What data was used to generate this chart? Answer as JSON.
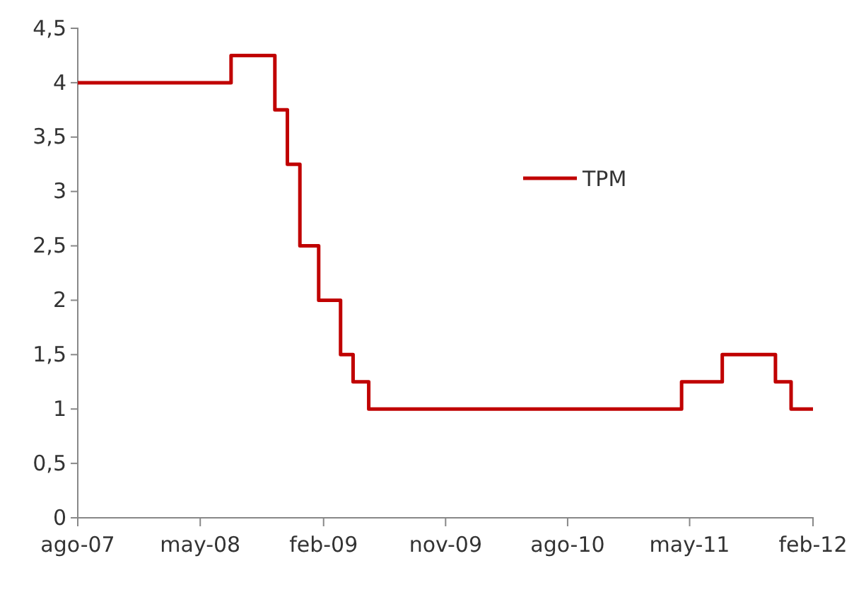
{
  "chart_data": {
    "type": "step",
    "x": [
      "2007-08-01",
      "2008-07-09",
      "2008-10-15",
      "2008-11-12",
      "2008-12-10",
      "2009-01-21",
      "2009-03-11",
      "2009-04-08",
      "2009-05-13",
      "2011-04-13",
      "2011-07-13",
      "2011-11-09",
      "2011-12-14",
      "2012-02-01"
    ],
    "series": [
      {
        "name": "TPM",
        "color": "#c00000",
        "values": [
          4,
          4.25,
          3.75,
          3.25,
          2.5,
          2,
          1.5,
          1.25,
          1,
          1.25,
          1.5,
          1.25,
          1,
          1
        ]
      }
    ],
    "xlim": [
      "2007-08-01",
      "2012-02-01"
    ],
    "xticks": [
      {
        "value": "2007-08-01",
        "label": "ago-07"
      },
      {
        "value": "2008-05-01",
        "label": "may-08"
      },
      {
        "value": "2009-02-01",
        "label": "feb-09"
      },
      {
        "value": "2009-11-01",
        "label": "nov-09"
      },
      {
        "value": "2010-08-01",
        "label": "ago-10"
      },
      {
        "value": "2011-05-01",
        "label": "may-11"
      },
      {
        "value": "2012-02-01",
        "label": "feb-12"
      }
    ],
    "ylim": [
      0,
      4.5
    ],
    "yticks": [
      0,
      {
        "value": 0.5,
        "label": "0,5"
      },
      1,
      {
        "value": 1.5,
        "label": "1,5"
      },
      2,
      {
        "value": 2.5,
        "label": "2,5"
      },
      3,
      {
        "value": 3.5,
        "label": "3,5"
      },
      4,
      {
        "value": 4.5,
        "label": "4,5"
      }
    ],
    "grid": false,
    "legend": "top right",
    "line_style": "solid"
  }
}
